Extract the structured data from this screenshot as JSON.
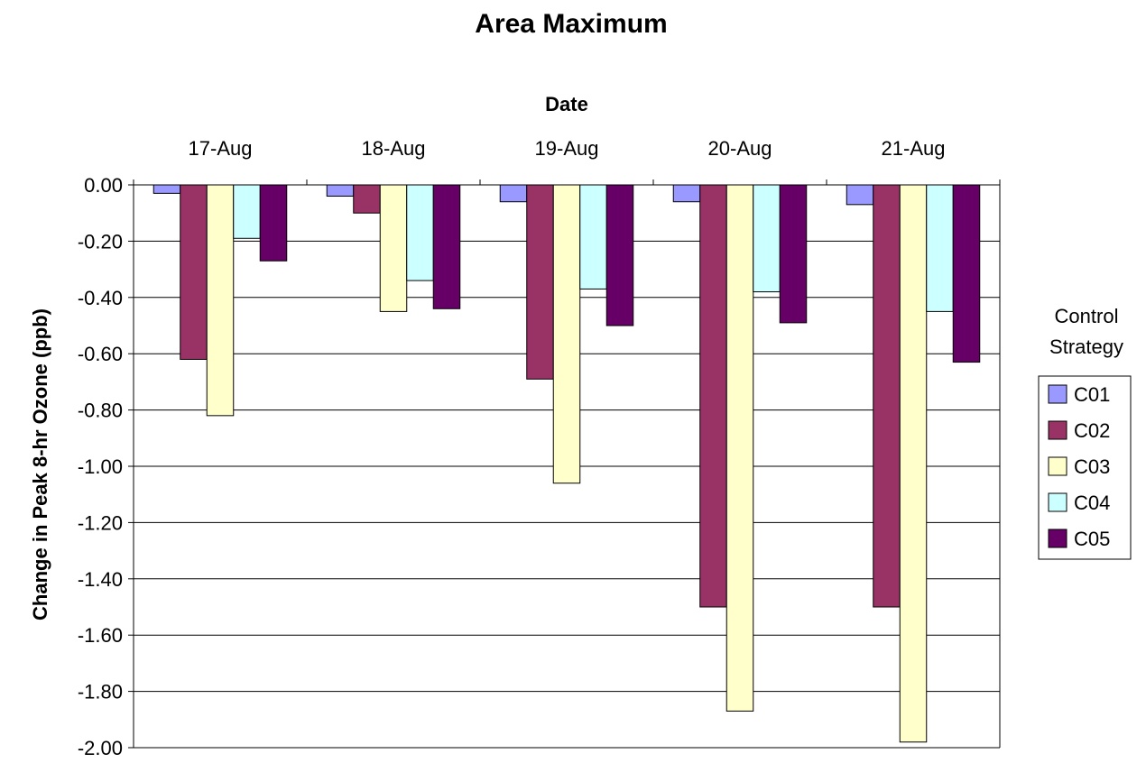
{
  "chart_data": {
    "type": "bar",
    "title": "Area Maximum",
    "xlabel": "Date",
    "ylabel": "Change in Peak 8-hr Ozone (ppb)",
    "categories": [
      "17-Aug",
      "18-Aug",
      "19-Aug",
      "20-Aug",
      "21-Aug"
    ],
    "ylim": [
      -2.0,
      0.0
    ],
    "yticks": [
      "0.00",
      "-0.20",
      "-0.40",
      "-0.60",
      "-0.80",
      "-1.00",
      "-1.20",
      "-1.40",
      "-1.60",
      "-1.80",
      "-2.00"
    ],
    "x_axis_position": "top",
    "grid": true,
    "legend": {
      "title_line1": "Control",
      "title_line2": "Strategy",
      "placement": "right"
    },
    "series": [
      {
        "name": "C01",
        "color": "#9999ff",
        "values": [
          -0.03,
          -0.04,
          -0.06,
          -0.06,
          -0.07
        ]
      },
      {
        "name": "C02",
        "color": "#993366",
        "values": [
          -0.62,
          -0.1,
          -0.69,
          -1.5,
          -1.5
        ]
      },
      {
        "name": "C03",
        "color": "#ffffcc",
        "values": [
          -0.82,
          -0.45,
          -1.06,
          -1.87,
          -1.98
        ]
      },
      {
        "name": "C04",
        "color": "#ccffff",
        "values": [
          -0.19,
          -0.34,
          -0.37,
          -0.38,
          -0.45
        ]
      },
      {
        "name": "C05",
        "color": "#660066",
        "values": [
          -0.27,
          -0.44,
          -0.5,
          -0.49,
          -0.63
        ]
      }
    ]
  }
}
